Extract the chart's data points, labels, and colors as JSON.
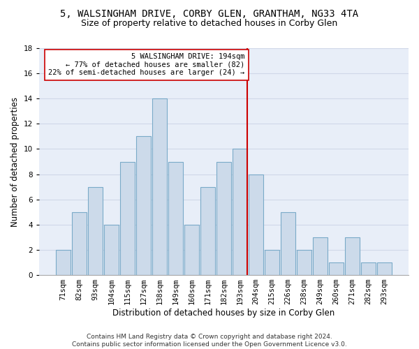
{
  "title1": "5, WALSINGHAM DRIVE, CORBY GLEN, GRANTHAM, NG33 4TA",
  "title2": "Size of property relative to detached houses in Corby Glen",
  "xlabel": "Distribution of detached houses by size in Corby Glen",
  "ylabel": "Number of detached properties",
  "categories": [
    "71sqm",
    "82sqm",
    "93sqm",
    "104sqm",
    "115sqm",
    "127sqm",
    "138sqm",
    "149sqm",
    "160sqm",
    "171sqm",
    "182sqm",
    "193sqm",
    "204sqm",
    "215sqm",
    "226sqm",
    "238sqm",
    "249sqm",
    "260sqm",
    "271sqm",
    "282sqm",
    "293sqm"
  ],
  "values": [
    2,
    5,
    7,
    4,
    9,
    11,
    14,
    9,
    4,
    7,
    9,
    10,
    8,
    2,
    5,
    2,
    3,
    1,
    3,
    1,
    1
  ],
  "bar_color": "#ccdaea",
  "bar_edge_color": "#7aaac8",
  "vline_label": "5 WALSINGHAM DRIVE: 194sqm",
  "annotation_line1": "← 77% of detached houses are smaller (82)",
  "annotation_line2": "22% of semi-detached houses are larger (24) →",
  "vline_color": "#cc0000",
  "annotation_box_color": "#ffffff",
  "annotation_box_edge": "#cc0000",
  "ylim": [
    0,
    18
  ],
  "yticks": [
    0,
    2,
    4,
    6,
    8,
    10,
    12,
    14,
    16,
    18
  ],
  "grid_color": "#d0d8e8",
  "background_color": "#e8eef8",
  "footer": "Contains HM Land Registry data © Crown copyright and database right 2024.\nContains public sector information licensed under the Open Government Licence v3.0.",
  "title1_fontsize": 10,
  "title2_fontsize": 9,
  "xlabel_fontsize": 8.5,
  "ylabel_fontsize": 8.5,
  "tick_fontsize": 7.5,
  "annotation_fontsize": 7.5,
  "vline_index": 11
}
